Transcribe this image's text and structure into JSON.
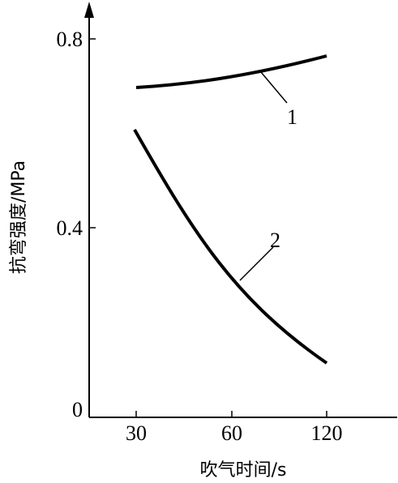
{
  "chart_data": {
    "type": "line",
    "xlabel": "吹气时间/s",
    "ylabel": "抗弯强度/MPa",
    "xlim": [
      30,
      120
    ],
    "ylim": [
      0,
      0.8
    ],
    "x_ticks": [
      "30",
      "60",
      "120"
    ],
    "y_ticks": [
      "0",
      "0.4",
      "0.8"
    ],
    "grid": false,
    "series": [
      {
        "name": "1",
        "x": [
          30,
          45,
          60,
          75,
          90,
          105,
          120
        ],
        "y": [
          0.7,
          0.705,
          0.71,
          0.72,
          0.73,
          0.745,
          0.77
        ]
      },
      {
        "name": "2",
        "x": [
          30,
          45,
          60,
          75,
          90,
          105,
          120
        ],
        "y": [
          0.61,
          0.5,
          0.4,
          0.31,
          0.24,
          0.17,
          0.1
        ]
      }
    ]
  }
}
